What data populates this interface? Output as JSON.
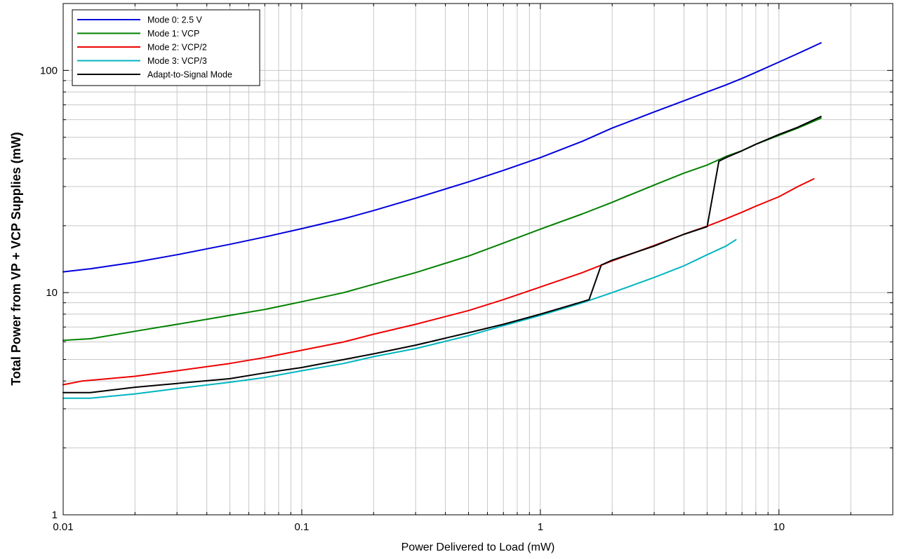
{
  "chart_data": {
    "type": "line",
    "xlabel": "Power Delivered to Load (mW)",
    "ylabel": "Total Power from VP + VCP Supplies (mW)",
    "xscale": "log",
    "yscale": "log",
    "xlim": [
      0.01,
      30
    ],
    "ylim": [
      1,
      200
    ],
    "x_ticks": [
      0.01,
      0.1,
      1,
      10
    ],
    "x_tick_labels": [
      "0.01",
      "0.1",
      "1",
      "10"
    ],
    "y_ticks": [
      1,
      10,
      100
    ],
    "y_tick_labels": [
      "1",
      "10",
      "100"
    ],
    "grid": true,
    "legend_position": "top-left",
    "series": [
      {
        "name": "Mode 0: 2.5 V",
        "color": "#0000dd",
        "points": [
          [
            0.01,
            12.4
          ],
          [
            0.013,
            12.8
          ],
          [
            0.02,
            13.7
          ],
          [
            0.03,
            14.8
          ],
          [
            0.05,
            16.5
          ],
          [
            0.07,
            17.8
          ],
          [
            0.1,
            19.4
          ],
          [
            0.15,
            21.5
          ],
          [
            0.2,
            23.4
          ],
          [
            0.3,
            26.6
          ],
          [
            0.5,
            31.5
          ],
          [
            0.7,
            35.5
          ],
          [
            1,
            40.5
          ],
          [
            1.5,
            48
          ],
          [
            2,
            55
          ],
          [
            3,
            65
          ],
          [
            4,
            73
          ],
          [
            5,
            80
          ],
          [
            6,
            86
          ],
          [
            7,
            92
          ],
          [
            8,
            98
          ],
          [
            10,
            109
          ],
          [
            12,
            119
          ],
          [
            15,
            133
          ]
        ]
      },
      {
        "name": "Mode 1: VCP",
        "color": "#008000",
        "points": [
          [
            0.01,
            6.1
          ],
          [
            0.013,
            6.2
          ],
          [
            0.02,
            6.7
          ],
          [
            0.03,
            7.2
          ],
          [
            0.05,
            7.9
          ],
          [
            0.07,
            8.4
          ],
          [
            0.1,
            9.1
          ],
          [
            0.15,
            10
          ],
          [
            0.2,
            10.9
          ],
          [
            0.3,
            12.3
          ],
          [
            0.5,
            14.6
          ],
          [
            0.7,
            16.7
          ],
          [
            1,
            19.3
          ],
          [
            1.5,
            22.6
          ],
          [
            2,
            25.5
          ],
          [
            3,
            30.5
          ],
          [
            4,
            34.5
          ],
          [
            5,
            37.5
          ],
          [
            6,
            41
          ],
          [
            7,
            43.5
          ],
          [
            8,
            46.5
          ],
          [
            10,
            51
          ],
          [
            12,
            55
          ],
          [
            15,
            61
          ]
        ]
      },
      {
        "name": "Mode 2: VCP/2",
        "color": "#ee0000",
        "points": [
          [
            0.01,
            3.85
          ],
          [
            0.012,
            4.0
          ],
          [
            0.02,
            4.2
          ],
          [
            0.03,
            4.45
          ],
          [
            0.05,
            4.8
          ],
          [
            0.07,
            5.1
          ],
          [
            0.1,
            5.5
          ],
          [
            0.15,
            6.0
          ],
          [
            0.2,
            6.5
          ],
          [
            0.3,
            7.2
          ],
          [
            0.5,
            8.3
          ],
          [
            0.7,
            9.3
          ],
          [
            1,
            10.6
          ],
          [
            1.5,
            12.3
          ],
          [
            2,
            13.9
          ],
          [
            3,
            16.3
          ],
          [
            4,
            18.3
          ],
          [
            5,
            19.9
          ],
          [
            6,
            21.5
          ],
          [
            7,
            23
          ],
          [
            8,
            24.5
          ],
          [
            10,
            27
          ],
          [
            12,
            30
          ],
          [
            14,
            32.5
          ]
        ]
      },
      {
        "name": "Mode 3: VCP/3",
        "color": "#00b5c0",
        "points": [
          [
            0.01,
            3.35
          ],
          [
            0.013,
            3.35
          ],
          [
            0.02,
            3.5
          ],
          [
            0.03,
            3.7
          ],
          [
            0.05,
            3.95
          ],
          [
            0.07,
            4.15
          ],
          [
            0.1,
            4.45
          ],
          [
            0.15,
            4.8
          ],
          [
            0.2,
            5.15
          ],
          [
            0.3,
            5.6
          ],
          [
            0.5,
            6.4
          ],
          [
            0.7,
            7.1
          ],
          [
            1,
            7.9
          ],
          [
            1.5,
            9.0
          ],
          [
            2,
            10
          ],
          [
            3,
            11.7
          ],
          [
            4,
            13.2
          ],
          [
            5,
            14.8
          ],
          [
            6,
            16.2
          ],
          [
            6.6,
            17.3
          ]
        ]
      },
      {
        "name": "Adapt-to-Signal Mode",
        "color": "#000000",
        "points": [
          [
            0.01,
            3.55
          ],
          [
            0.013,
            3.55
          ],
          [
            0.02,
            3.75
          ],
          [
            0.03,
            3.9
          ],
          [
            0.05,
            4.1
          ],
          [
            0.07,
            4.35
          ],
          [
            0.1,
            4.6
          ],
          [
            0.15,
            5.0
          ],
          [
            0.2,
            5.3
          ],
          [
            0.3,
            5.8
          ],
          [
            0.5,
            6.6
          ],
          [
            0.7,
            7.2
          ],
          [
            1,
            8.0
          ],
          [
            1.5,
            9.1
          ],
          [
            1.6,
            9.3
          ],
          [
            1.8,
            13.3
          ],
          [
            2,
            14.0
          ],
          [
            3,
            16.2
          ],
          [
            4,
            18.3
          ],
          [
            5,
            19.8
          ],
          [
            5.6,
            39
          ],
          [
            6,
            40.5
          ],
          [
            7,
            43.5
          ],
          [
            8,
            46.5
          ],
          [
            10,
            51.5
          ],
          [
            12,
            55.5
          ],
          [
            15,
            62
          ]
        ]
      }
    ]
  }
}
